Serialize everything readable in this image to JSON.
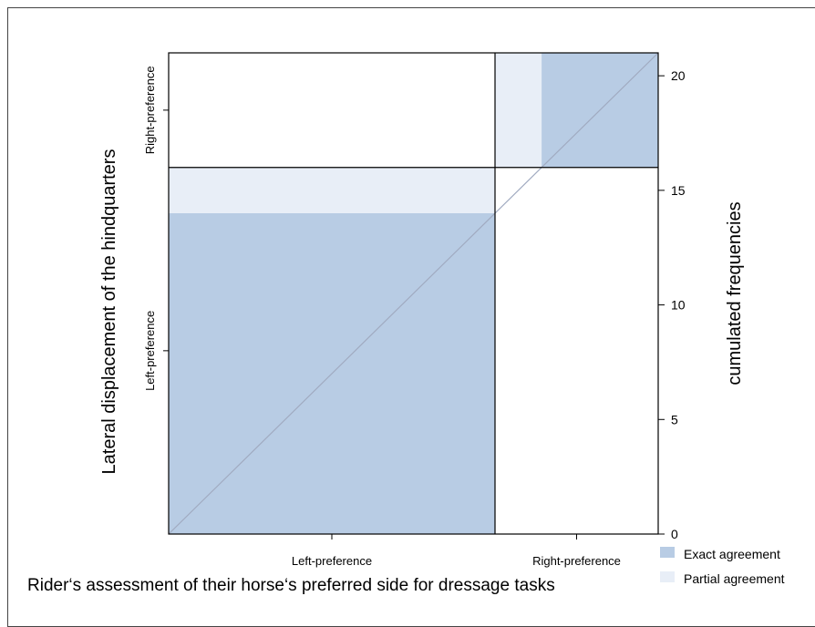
{
  "chart_data": {
    "type": "agreement",
    "categories": [
      "Left-preference",
      "Right-preference"
    ],
    "xlabel": "Rider‘s assessment of their horse‘s preferred side for dressage tasks",
    "ylabel": "Lateral displacement of the hindquarters",
    "y2label": "cumulated frequencies",
    "ylim": [
      0,
      21
    ],
    "y2_ticks": [
      0,
      5,
      10,
      15,
      20
    ],
    "x_totals": [
      14,
      7
    ],
    "y_totals": [
      16,
      5
    ],
    "exact": [
      14,
      5
    ],
    "partial": [
      2,
      2
    ],
    "colors": {
      "exact": "#b8cce4",
      "partial": "#e8eef7",
      "diagonal": "#a0aac0"
    },
    "legend": [
      {
        "key": "exact",
        "label": "Exact agreement"
      },
      {
        "key": "partial",
        "label": "Partial agreement"
      }
    ],
    "legend_position": "bottom-right"
  }
}
